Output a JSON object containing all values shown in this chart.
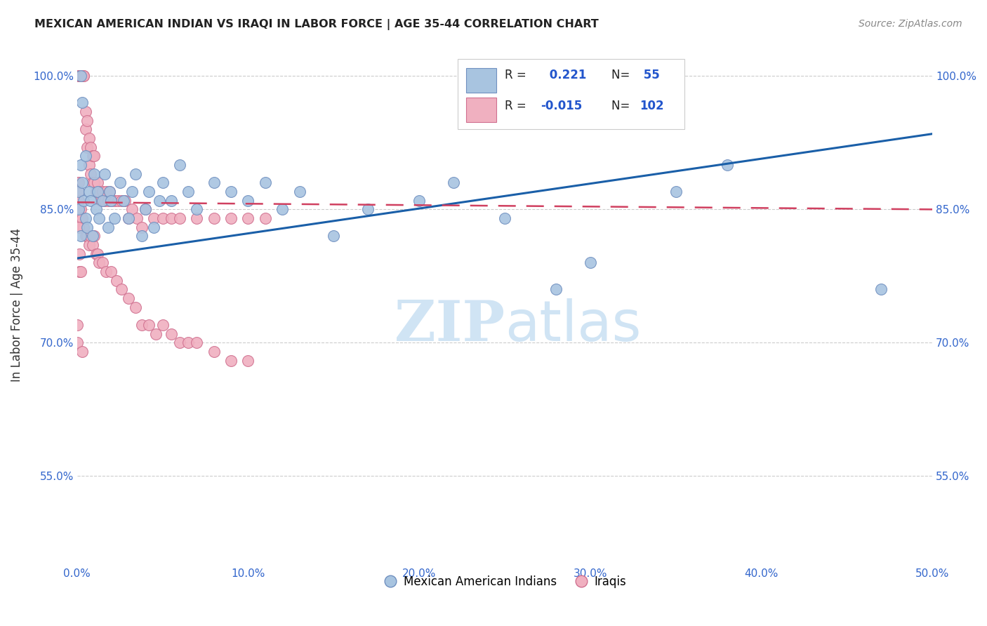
{
  "title": "MEXICAN AMERICAN INDIAN VS IRAQI IN LABOR FORCE | AGE 35-44 CORRELATION CHART",
  "source": "Source: ZipAtlas.com",
  "ylabel": "In Labor Force | Age 35-44",
  "xlim": [
    0.0,
    0.5
  ],
  "ylim": [
    0.45,
    1.035
  ],
  "xticks": [
    0.0,
    0.1,
    0.2,
    0.3,
    0.4,
    0.5
  ],
  "xticklabels": [
    "0.0%",
    "10.0%",
    "20.0%",
    "30.0%",
    "40.0%",
    "50.0%"
  ],
  "yticks": [
    0.55,
    0.7,
    0.85,
    1.0
  ],
  "yticklabels": [
    "55.0%",
    "70.0%",
    "85.0%",
    "100.0%"
  ],
  "legend_label_blue": "Mexican American Indians",
  "legend_label_pink": "Iraqis",
  "blue_color": "#a8c4e0",
  "pink_color": "#f0b0c0",
  "blue_edge": "#7090c0",
  "pink_edge": "#d07090",
  "trend_blue_color": "#1a5fa8",
  "trend_pink_color": "#d04060",
  "watermark_color": "#d0e4f4",
  "blue_trend_x0": 0.0,
  "blue_trend_y0": 0.795,
  "blue_trend_x1": 0.5,
  "blue_trend_y1": 0.935,
  "pink_trend_x0": 0.0,
  "pink_trend_y0": 0.858,
  "pink_trend_x1": 0.5,
  "pink_trend_y1": 0.85,
  "blue_scatter_x": [
    0.001,
    0.001,
    0.002,
    0.002,
    0.003,
    0.004,
    0.005,
    0.005,
    0.006,
    0.007,
    0.008,
    0.009,
    0.01,
    0.011,
    0.012,
    0.013,
    0.015,
    0.016,
    0.018,
    0.019,
    0.02,
    0.022,
    0.025,
    0.027,
    0.03,
    0.032,
    0.034,
    0.038,
    0.04,
    0.042,
    0.045,
    0.048,
    0.05,
    0.055,
    0.06,
    0.065,
    0.07,
    0.08,
    0.09,
    0.1,
    0.11,
    0.12,
    0.13,
    0.15,
    0.17,
    0.2,
    0.22,
    0.25,
    0.28,
    0.3,
    0.35,
    0.38,
    0.47,
    0.002,
    0.003
  ],
  "blue_scatter_y": [
    0.87,
    0.85,
    0.9,
    0.82,
    0.88,
    0.86,
    0.84,
    0.91,
    0.83,
    0.87,
    0.86,
    0.82,
    0.89,
    0.85,
    0.87,
    0.84,
    0.86,
    0.89,
    0.83,
    0.87,
    0.86,
    0.84,
    0.88,
    0.86,
    0.84,
    0.87,
    0.89,
    0.82,
    0.85,
    0.87,
    0.83,
    0.86,
    0.88,
    0.86,
    0.9,
    0.87,
    0.85,
    0.88,
    0.87,
    0.86,
    0.88,
    0.85,
    0.87,
    0.82,
    0.85,
    0.86,
    0.88,
    0.84,
    0.76,
    0.79,
    0.87,
    0.9,
    0.76,
    1.0,
    0.97
  ],
  "pink_scatter_x": [
    0.0002,
    0.0004,
    0.0006,
    0.0008,
    0.001,
    0.001,
    0.001,
    0.0015,
    0.002,
    0.002,
    0.002,
    0.003,
    0.003,
    0.003,
    0.004,
    0.004,
    0.005,
    0.005,
    0.006,
    0.006,
    0.007,
    0.007,
    0.008,
    0.008,
    0.009,
    0.009,
    0.01,
    0.01,
    0.011,
    0.012,
    0.013,
    0.014,
    0.015,
    0.016,
    0.017,
    0.018,
    0.019,
    0.02,
    0.022,
    0.024,
    0.026,
    0.028,
    0.03,
    0.032,
    0.035,
    0.038,
    0.04,
    0.045,
    0.05,
    0.055,
    0.06,
    0.07,
    0.08,
    0.09,
    0.1,
    0.11,
    0.0002,
    0.0004,
    0.0006,
    0.0008,
    0.001,
    0.0015,
    0.002,
    0.002,
    0.003,
    0.003,
    0.004,
    0.005,
    0.006,
    0.007,
    0.008,
    0.009,
    0.01,
    0.011,
    0.012,
    0.013,
    0.015,
    0.017,
    0.02,
    0.023,
    0.026,
    0.03,
    0.034,
    0.038,
    0.042,
    0.046,
    0.05,
    0.055,
    0.06,
    0.065,
    0.07,
    0.08,
    0.09,
    0.1,
    0.0002,
    0.0002,
    0.001,
    0.001,
    0.0015,
    0.0015,
    0.002,
    0.003
  ],
  "pink_scatter_y": [
    1.0,
    1.0,
    1.0,
    1.0,
    1.0,
    1.0,
    1.0,
    1.0,
    1.0,
    1.0,
    1.0,
    1.0,
    1.0,
    1.0,
    1.0,
    1.0,
    0.94,
    0.96,
    0.92,
    0.95,
    0.9,
    0.93,
    0.89,
    0.92,
    0.88,
    0.91,
    0.88,
    0.91,
    0.87,
    0.88,
    0.87,
    0.86,
    0.87,
    0.86,
    0.87,
    0.86,
    0.87,
    0.86,
    0.86,
    0.86,
    0.86,
    0.86,
    0.84,
    0.85,
    0.84,
    0.83,
    0.85,
    0.84,
    0.84,
    0.84,
    0.84,
    0.84,
    0.84,
    0.84,
    0.84,
    0.84,
    0.87,
    0.88,
    0.86,
    0.87,
    0.86,
    0.85,
    0.85,
    0.84,
    0.84,
    0.83,
    0.83,
    0.82,
    0.82,
    0.81,
    0.82,
    0.81,
    0.82,
    0.8,
    0.8,
    0.79,
    0.79,
    0.78,
    0.78,
    0.77,
    0.76,
    0.75,
    0.74,
    0.72,
    0.72,
    0.71,
    0.72,
    0.71,
    0.7,
    0.7,
    0.7,
    0.69,
    0.68,
    0.68,
    0.7,
    0.72,
    0.88,
    0.83,
    0.8,
    0.78,
    0.78,
    0.69
  ]
}
